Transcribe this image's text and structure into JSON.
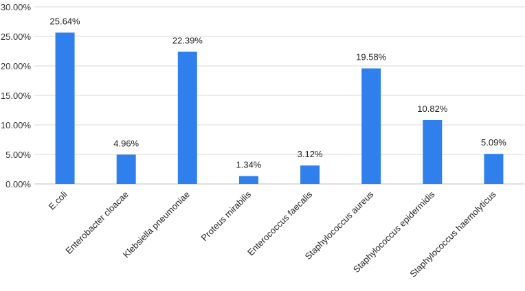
{
  "chart_data": {
    "type": "bar",
    "categories": [
      "E.coli",
      "Enterobacter cloacae",
      "Klebsiella pneumoniae",
      "Proteus mirabilis",
      "Enterococcus faecalis",
      "Staphylococcus aureus",
      "Staphylococcus epidermidis",
      "Staphylococcus haemolyticus"
    ],
    "values": [
      25.64,
      4.96,
      22.39,
      1.34,
      3.12,
      19.58,
      10.82,
      5.09
    ],
    "data_labels": [
      "25.64%",
      "4.96%",
      "22.39%",
      "1.34%",
      "3.12%",
      "19.58%",
      "10.82%",
      "5.09%"
    ],
    "y_ticks": [
      "0.00%",
      "5.00%",
      "10.00%",
      "15.00%",
      "20.00%",
      "25.00%",
      "30.00%"
    ],
    "ylim": [
      0,
      30
    ],
    "title": "",
    "xlabel": "",
    "ylabel": "",
    "grid": true,
    "legend": "none",
    "bar_color": "#2f80ed"
  }
}
